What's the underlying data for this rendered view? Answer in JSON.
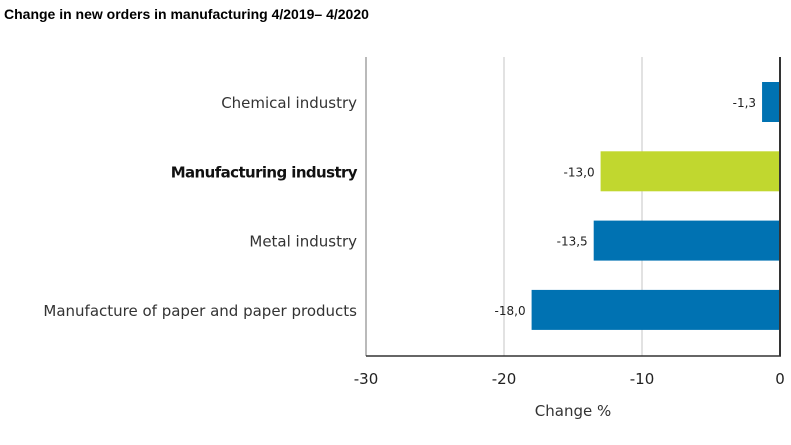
{
  "chart_data": {
    "type": "bar",
    "orientation": "horizontal",
    "title": "Change in new orders in manufacturing 4/2019– 4/2020",
    "xlabel": "Change %",
    "ylabel": "",
    "xlim": [
      -30,
      0
    ],
    "xticks": [
      -30,
      -20,
      -10,
      0
    ],
    "xtick_labels": [
      "-30",
      "-20",
      "-10",
      "0"
    ],
    "grid": true,
    "categories": [
      "Chemical industry",
      "Manufacturing industry",
      "Metal industry",
      "Manufacture of paper and paper products"
    ],
    "values": [
      -1.3,
      -13.0,
      -13.5,
      -18.0
    ],
    "value_labels": [
      "-1,3",
      "-13,0",
      "-13,5",
      "-18,0"
    ],
    "highlighted": [
      false,
      true,
      false,
      false
    ],
    "colors": {
      "default": "#0072b2",
      "highlight": "#c1d72f",
      "grid": "#d9d9d9",
      "axis": "#333333"
    }
  }
}
